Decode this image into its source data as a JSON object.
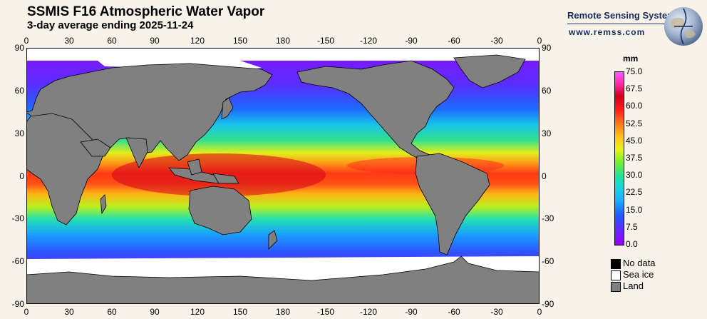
{
  "header": {
    "title": "SSMIS F16 Atmospheric Water Vapor",
    "subtitle": "3-day average ending 2025-11-24"
  },
  "brand": {
    "name": "Remote Sensing Systems",
    "url": "www.remss.com",
    "logo_icon": "globe-logo-icon"
  },
  "axes": {
    "x_ticks": [
      "0",
      "30",
      "60",
      "90",
      "120",
      "150",
      "180",
      "-150",
      "-120",
      "-90",
      "-60",
      "-30",
      "0"
    ],
    "y_ticks_left": [
      "90",
      "60",
      "30",
      "0",
      "-30",
      "-60",
      "-90"
    ],
    "y_ticks_right": [
      "90",
      "60",
      "30",
      "0",
      "-30",
      "-60",
      "-90"
    ]
  },
  "colorbar": {
    "unit": "mm",
    "labels": [
      "75.0",
      "67.5",
      "60.0",
      "52.5",
      "45.0",
      "37.5",
      "30.0",
      "22.5",
      "15.0",
      "7.5",
      "0.0"
    ]
  },
  "legend": [
    {
      "label": "No data",
      "color": "#000000"
    },
    {
      "label": "Sea ice",
      "color": "#ffffff"
    },
    {
      "label": "Land",
      "color": "#808080"
    }
  ],
  "colors": {
    "land": "#808080",
    "sea_ice": "#ffffff",
    "no_data": "#000000",
    "background": "#f7f3e9"
  }
}
